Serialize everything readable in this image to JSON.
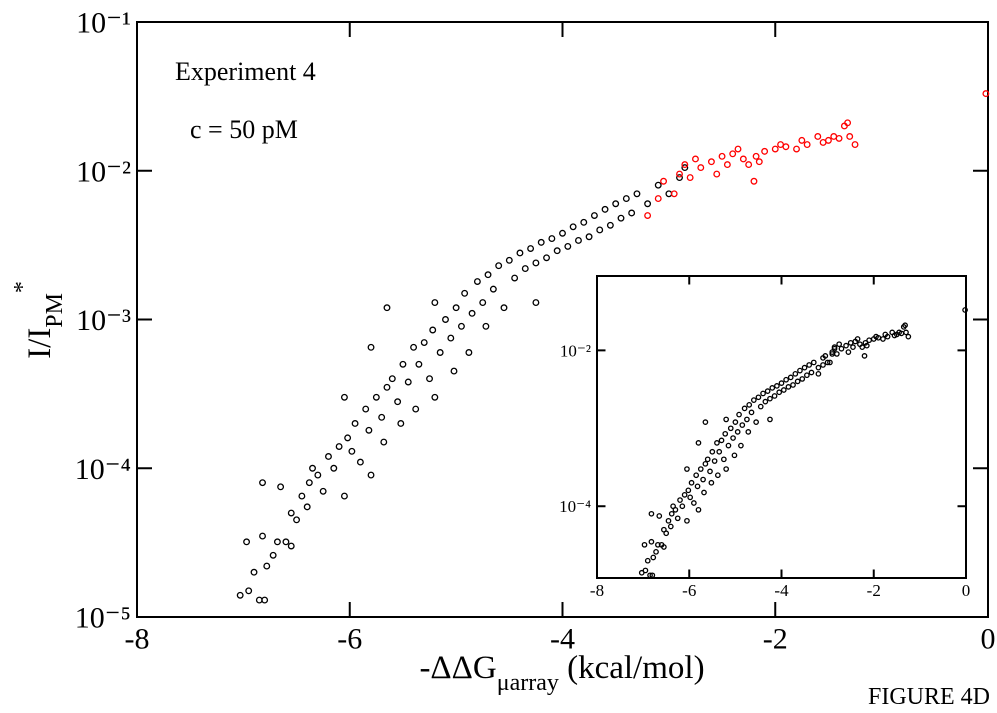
{
  "chart_data": {
    "type": "scatter",
    "annotations": [
      "Experiment 4",
      "c = 50 pM"
    ],
    "figure_label": "FIGURE 4D",
    "xlabel": {
      "main": "-ΔΔG",
      "sub": "μarray",
      "unit": " (kcal/mol)"
    },
    "ylabel": {
      "main": "I/I",
      "sub": "PM",
      "sup": "*"
    },
    "xlim": [
      -8,
      0
    ],
    "xticks": [
      -8,
      -6,
      -4,
      -2,
      0
    ],
    "ylim": [
      1e-05,
      0.1
    ],
    "log_y": true,
    "yticks": [
      {
        "value": 0.1,
        "label": "10⁻¹"
      },
      {
        "value": 0.01,
        "label": "10⁻²"
      },
      {
        "value": 0.001,
        "label": "10⁻³"
      },
      {
        "value": 0.0001,
        "label": "10⁻⁴"
      },
      {
        "value": 1e-05,
        "label": "10⁻⁵"
      }
    ],
    "series": [
      {
        "color": "#000000",
        "x": [
          -7.03,
          -6.95,
          -6.9,
          -6.85,
          -6.8,
          -6.97,
          -6.82,
          -6.78,
          -6.72,
          -6.68,
          -6.6,
          -6.55,
          -6.82,
          -6.65,
          -6.55,
          -6.5,
          -6.45,
          -6.4,
          -6.38,
          -6.3,
          -6.35,
          -6.25,
          -6.2,
          -6.15,
          -6.1,
          -6.05,
          -6.02,
          -5.98,
          -5.95,
          -5.9,
          -5.85,
          -5.82,
          -5.8,
          -5.75,
          -5.7,
          -5.68,
          -5.65,
          -5.6,
          -5.55,
          -5.52,
          -5.5,
          -5.45,
          -5.4,
          -5.38,
          -5.35,
          -5.3,
          -5.25,
          -5.22,
          -5.2,
          -5.15,
          -5.1,
          -5.05,
          -5.02,
          -5,
          -4.95,
          -4.92,
          -4.88,
          -4.85,
          -4.8,
          -4.75,
          -4.72,
          -4.7,
          -4.65,
          -4.6,
          -4.55,
          -4.5,
          -4.45,
          -4.4,
          -4.35,
          -4.3,
          -4.25,
          -4.2,
          -4.15,
          -4.1,
          -4.05,
          -4,
          -3.95,
          -3.9,
          -3.85,
          -3.8,
          -3.75,
          -3.7,
          -3.65,
          -3.6,
          -3.55,
          -3.5,
          -3.45,
          -3.4,
          -3.35,
          -3.3,
          -3.2,
          -3.1,
          -3.0,
          -2.9,
          -2.85,
          -4.25,
          -5.65,
          -6.05,
          -5.2,
          -5.8
        ],
        "values": [
          1.4e-05,
          1.5e-05,
          2e-05,
          1.3e-05,
          1.3e-05,
          3.2e-05,
          3.5e-05,
          2.2e-05,
          2.6e-05,
          3.2e-05,
          3.2e-05,
          3e-05,
          8e-05,
          7.5e-05,
          5e-05,
          4.5e-05,
          6.5e-05,
          5.5e-05,
          8e-05,
          9e-05,
          0.0001,
          7e-05,
          0.00012,
          0.0001,
          0.00014,
          6.5e-05,
          0.00016,
          0.00013,
          0.0002,
          0.00011,
          0.00025,
          0.00018,
          9e-05,
          0.0003,
          0.00022,
          0.00015,
          0.00035,
          0.0004,
          0.00028,
          0.0002,
          0.0005,
          0.00038,
          0.00065,
          0.00025,
          0.0005,
          0.0007,
          0.0004,
          0.00085,
          0.0003,
          0.0006,
          0.001,
          0.00075,
          0.00045,
          0.0012,
          0.0009,
          0.0015,
          0.0006,
          0.0011,
          0.0018,
          0.0013,
          0.0009,
          0.002,
          0.0016,
          0.0023,
          0.0012,
          0.0025,
          0.0019,
          0.0028,
          0.0022,
          0.003,
          0.0024,
          0.0033,
          0.0026,
          0.0035,
          0.0029,
          0.0038,
          0.0031,
          0.0042,
          0.0034,
          0.0045,
          0.0036,
          0.005,
          0.004,
          0.0055,
          0.0043,
          0.006,
          0.0048,
          0.0065,
          0.0052,
          0.007,
          0.006,
          0.008,
          0.007,
          0.009,
          0.0105,
          0.0013,
          0.0012,
          0.0003,
          0.0013,
          0.00065
        ]
      },
      {
        "color": "#ff0000",
        "x": [
          -3.2,
          -3.1,
          -3.05,
          -2.95,
          -2.9,
          -2.85,
          -2.8,
          -2.75,
          -2.7,
          -2.6,
          -2.55,
          -2.5,
          -2.45,
          -2.4,
          -2.35,
          -2.3,
          -2.25,
          -2.2,
          -2.18,
          -2.15,
          -2.1,
          -2.0,
          -1.95,
          -1.9,
          -1.8,
          -1.75,
          -1.7,
          -1.6,
          -1.55,
          -1.5,
          -1.45,
          -1.4,
          -1.35,
          -1.32,
          -1.3,
          -1.25,
          -0.02
        ],
        "values": [
          0.005,
          0.0065,
          0.0085,
          0.007,
          0.0095,
          0.011,
          0.009,
          0.012,
          0.0105,
          0.0115,
          0.0095,
          0.0125,
          0.011,
          0.013,
          0.014,
          0.012,
          0.011,
          0.0085,
          0.0125,
          0.0115,
          0.0135,
          0.014,
          0.015,
          0.0145,
          0.014,
          0.016,
          0.015,
          0.017,
          0.0155,
          0.016,
          0.017,
          0.0165,
          0.02,
          0.021,
          0.017,
          0.015,
          0.033
        ]
      }
    ],
    "inset": {
      "color": "#000000",
      "xlim": [
        -8,
        0
      ],
      "xticks": [
        -8,
        -6,
        -4,
        -2,
        0
      ],
      "ylim": [
        1.2e-05,
        0.09
      ],
      "yticks": [
        {
          "value": 0.01,
          "label": "10⁻²"
        },
        {
          "value": 0.0001,
          "label": "10⁻⁴"
        }
      ]
    }
  }
}
